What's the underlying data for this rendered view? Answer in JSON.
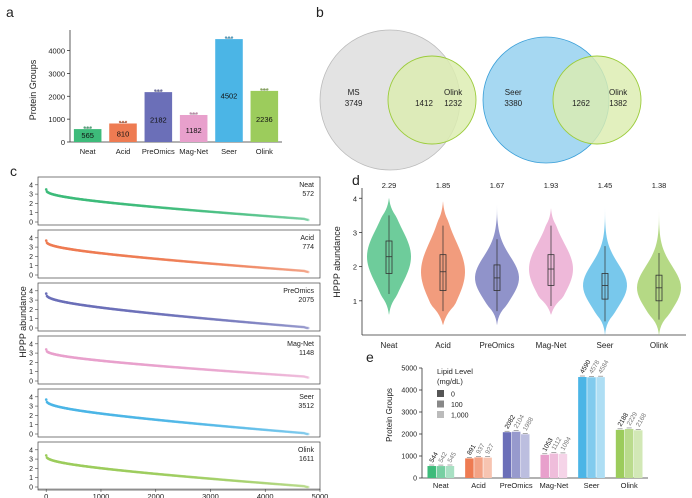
{
  "panel_letters": {
    "a": "a",
    "b": "b",
    "c": "c",
    "d": "d",
    "e": "e"
  },
  "colors": {
    "Neat": "#3dbb7a",
    "Acid": "#ee7b52",
    "PreOmics": "#6b6fb8",
    "Mag-Net": "#e8a0cc",
    "Seer": "#4bb5e6",
    "Olink": "#9ccc5c",
    "ms_circle": "#e3e3e3",
    "olink_circle": "#dcedb0",
    "seer_circle": "#a6d8f2"
  },
  "chart_data": [
    {
      "id": "a",
      "type": "bar",
      "categories": [
        "Neat",
        "Acid",
        "PreOmics",
        "Mag-Net",
        "Seer",
        "Olink"
      ],
      "values": [
        565,
        810,
        2182,
        1182,
        4502,
        2236
      ],
      "value_labels": [
        "565",
        "810",
        "2182",
        "1182",
        "4502",
        "2236"
      ],
      "ylabel": "Protein Groups",
      "yticks": [
        "0",
        "1000",
        "2000",
        "3000",
        "4000"
      ],
      "ylim": [
        0,
        4900
      ]
    },
    {
      "id": "b",
      "type": "venn",
      "diagrams": [
        {
          "left_name": "MS",
          "left_only": "3749",
          "overlap": "1412",
          "right_name": "Olink",
          "right_only": "1232"
        },
        {
          "left_name": "Seer",
          "left_only": "3380",
          "overlap": "1262",
          "right_name": "Olink",
          "right_only": "1382"
        }
      ]
    },
    {
      "id": "c",
      "type": "scatter",
      "ylabel": "HPPP abundance",
      "yticks": [
        "0",
        "1",
        "2",
        "3",
        "4"
      ],
      "ylim": [
        0,
        4.3
      ],
      "xlim": [
        -150,
        5000
      ],
      "xticks": [
        "0",
        "1000",
        "2000",
        "3000",
        "4000",
        "5000"
      ],
      "panels": [
        {
          "name": "Neat",
          "count": "572",
          "n": 572,
          "start": 3.5,
          "end": 0.3
        },
        {
          "name": "Acid",
          "count": "774",
          "n": 774,
          "start": 3.7,
          "end": 0.4
        },
        {
          "name": "PreOmics",
          "count": "2075",
          "n": 2075,
          "start": 3.7,
          "end": 0.05
        },
        {
          "name": "Mag-Net",
          "count": "1148",
          "n": 1148,
          "start": 3.4,
          "end": 0.45
        },
        {
          "name": "Seer",
          "count": "3512",
          "n": 3512,
          "start": 3.7,
          "end": 0.05
        },
        {
          "name": "Olink",
          "count": "1611",
          "n": 1611,
          "start": 3.4,
          "end": 0.05
        }
      ]
    },
    {
      "id": "d",
      "type": "violin",
      "categories": [
        "Neat",
        "Acid",
        "PreOmics",
        "Mag-Net",
        "Seer",
        "Olink"
      ],
      "medians": [
        2.29,
        1.85,
        1.67,
        1.93,
        1.45,
        1.38
      ],
      "median_labels": [
        "2.29",
        "1.85",
        "1.67",
        "1.93",
        "1.45",
        "1.38"
      ],
      "q1": [
        1.8,
        1.3,
        1.3,
        1.45,
        1.05,
        1.0
      ],
      "q3": [
        2.75,
        2.35,
        2.05,
        2.35,
        1.8,
        1.75
      ],
      "min": [
        0.6,
        0.3,
        0.3,
        0.6,
        0.0,
        0.0
      ],
      "max": [
        4.0,
        3.9,
        3.8,
        3.7,
        3.8,
        3.7
      ],
      "whisker_low": [
        1.2,
        0.7,
        0.7,
        0.85,
        0.4,
        0.45
      ],
      "whisker_high": [
        3.5,
        3.2,
        2.8,
        3.2,
        2.6,
        2.4
      ],
      "ylabel": "HPPP abundance",
      "yticks": [
        "1",
        "2",
        "3",
        "4"
      ],
      "ylim": [
        0,
        4.3
      ]
    },
    {
      "id": "e",
      "type": "bar",
      "categories": [
        "Neat",
        "Acid",
        "PreOmics",
        "Mag-Net",
        "Seer",
        "Olink"
      ],
      "series": [
        {
          "name": "0",
          "values": [
            544,
            891,
            2082,
            1053,
            4590,
            2188
          ],
          "labels": [
            "544",
            "891",
            "2082",
            "1053",
            "4590",
            "2188"
          ]
        },
        {
          "name": "100",
          "values": [
            542,
            937,
            2104,
            1112,
            4578,
            2229
          ],
          "labels": [
            "542",
            "937",
            "2104",
            "1112",
            "4578",
            "2229"
          ]
        },
        {
          "name": "1,000",
          "values": [
            545,
            927,
            1988,
            1094,
            4584,
            2168
          ],
          "labels": [
            "545",
            "927",
            "1988",
            "1094",
            "4584",
            "2168"
          ]
        }
      ],
      "legend_title_line1": "Lipid Level",
      "legend_title_line2": "(mg/dL)",
      "ylabel": "Protein Groups",
      "yticks": [
        "0",
        "1000",
        "2000",
        "3000",
        "4000",
        "5000"
      ],
      "ylim": [
        0,
        5000
      ]
    }
  ]
}
